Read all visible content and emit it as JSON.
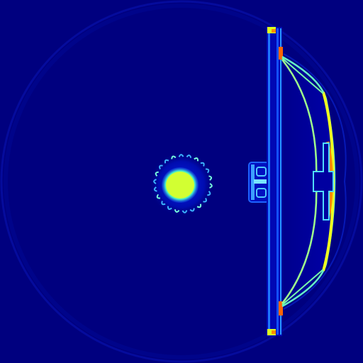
{
  "image": {
    "kind": "false-color cross-section scan",
    "colormap": "jet",
    "colors": {
      "background": "#00007f",
      "low": "#0000c8",
      "low_mid": "#1e50ff",
      "mid": "#00c8ff",
      "mid_high": "#64ff96",
      "high": "#dcff1e",
      "very_high": "#ff8c00",
      "peak": "#ff3c00"
    }
  }
}
